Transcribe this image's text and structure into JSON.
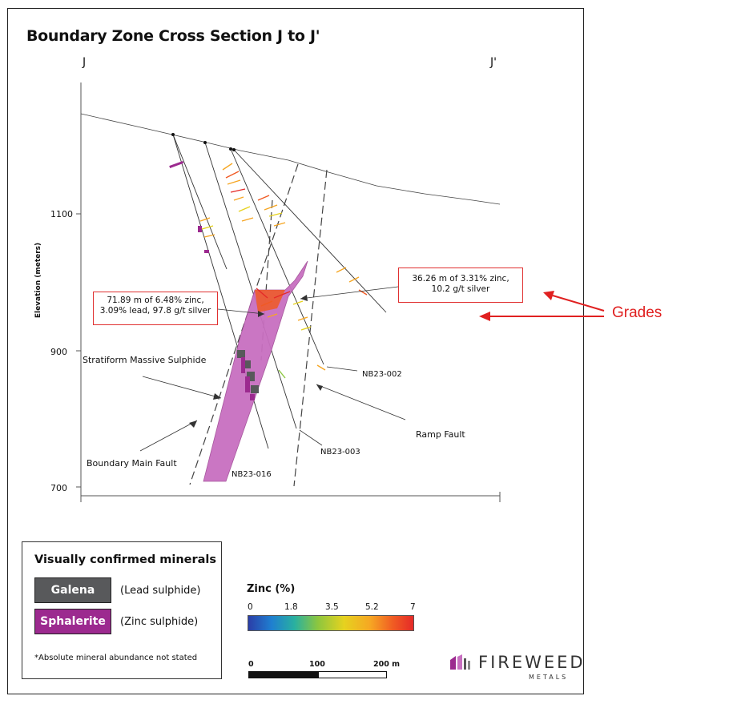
{
  "title": "Boundary Zone Cross Section J to J'",
  "section_start_label": "J",
  "section_end_label": "J'",
  "y_axis": {
    "label": "Elevation (meters)",
    "ticks": [
      "1100",
      "900",
      "700"
    ]
  },
  "labels": {
    "stratiform": "Stratiform Massive Sulphide",
    "boundary_fault": "Boundary Main Fault",
    "ramp_fault": "Ramp Fault",
    "hole_002": "NB23-002",
    "hole_003": "NB23-003",
    "hole_016": "NB23-016"
  },
  "callouts": {
    "left": [
      "71.89 m of 6.48% zinc,",
      "3.09% lead, 97.8 g/t silver"
    ],
    "right": [
      "36.26 m of 3.31% zinc,",
      "10.2 g/t silver"
    ],
    "grades": "Grades"
  },
  "legend": {
    "title": "Visually confirmed minerals",
    "items": [
      {
        "name": "Galena",
        "desc": "(Lead sulphide)",
        "color": "#58595b"
      },
      {
        "name": "Sphalerite",
        "desc": "(Zinc sulphide)",
        "color": "#9c2a8f"
      }
    ],
    "footnote": "*Absolute mineral abundance not stated"
  },
  "zinc_scale": {
    "title": "Zinc (%)",
    "ticks": [
      "0",
      "1.8",
      "3.5",
      "5.2",
      "7"
    ]
  },
  "scale_bar": {
    "ticks": [
      "0",
      "100",
      "200 m"
    ]
  },
  "logo": {
    "name": "FIREWEED",
    "sub": "METALS"
  },
  "colors": {
    "accent_red": "#e02020",
    "sulphide": "#c86fc0",
    "galena": "#58595b"
  }
}
